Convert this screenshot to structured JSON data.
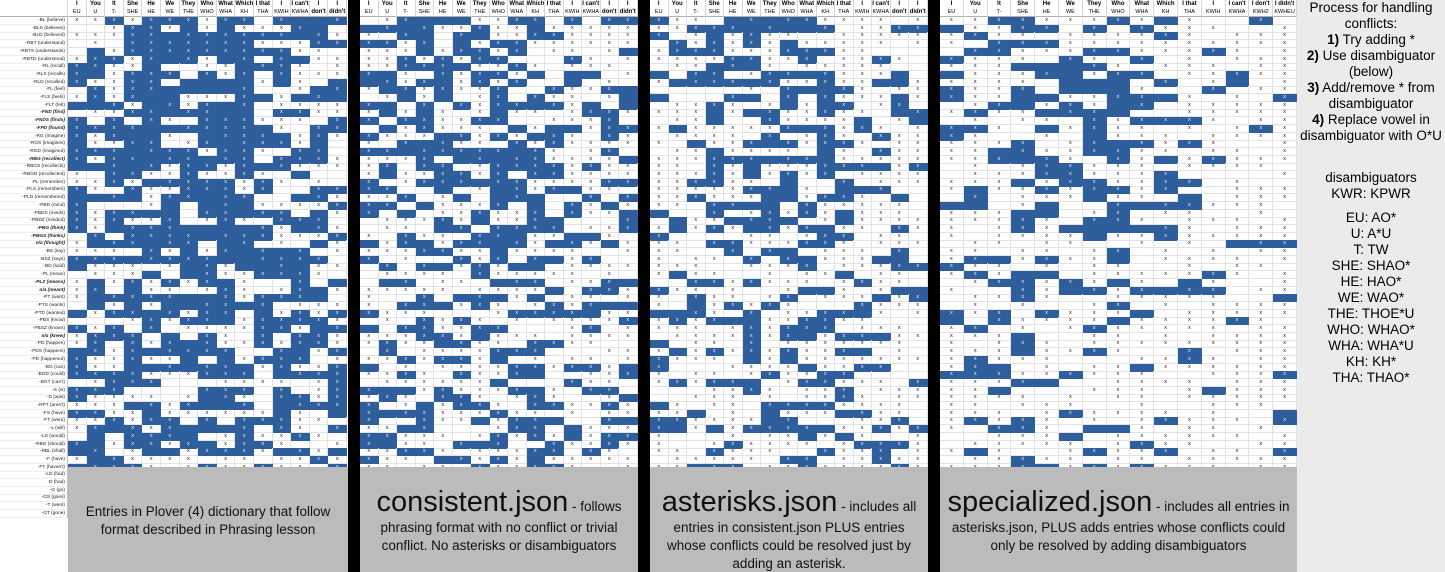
{
  "colors": {
    "highlight": "#2e5f9c",
    "caption_bg": "#bbbbbb",
    "sidebar_bg": "#ebebeb",
    "gutter": "#000000"
  },
  "columns": [
    {
      "top": "I",
      "bottom": "EU"
    },
    {
      "top": "You",
      "bottom": "U"
    },
    {
      "top": "It",
      "bottom": "T-"
    },
    {
      "top": "She",
      "bottom": "SHE"
    },
    {
      "top": "He",
      "bottom": "HE"
    },
    {
      "top": "We",
      "bottom": "WE"
    },
    {
      "top": "They",
      "bottom": "THE"
    },
    {
      "top": "Who",
      "bottom": "WHO"
    },
    {
      "top": "What",
      "bottom": "WHA"
    },
    {
      "top": "Which",
      "bottom": "KH"
    },
    {
      "top": "I that",
      "bottom": "THA"
    },
    {
      "top": "I",
      "bottom": "KWIH"
    },
    {
      "top": "I can't",
      "bottom": "KWHA"
    },
    {
      "top": "I don't",
      "bottom": "KWH2"
    },
    {
      "top": "I didn't",
      "bottom": "KWHEU"
    }
  ],
  "row_labels": [
    "-BL (believe)",
    "-BLS (believes)",
    "-BLD (believed)",
    "-RBT (understand)",
    "-RBTS (understands)",
    "-RBTD (understood)",
    "-RL (recall)",
    "-RLS (recalls)",
    "-RLD (recalled)",
    "-FL (feel)",
    "-FLS (feels)",
    "-FLT (felt)",
    "-FND (find)",
    "-FNDS (finds)",
    "-FPD (found)",
    "-RG (imagine)",
    "-RGS (imagines)",
    "-RGD (imagined)",
    "-RBG (recollect)",
    "-RBGS (recollects)",
    "-RBGD (recollected)",
    "-PL (remember)",
    "-PLS (remembers)",
    "-PLD (remembered)",
    "-PBD (mind)",
    "-PBDS (minds)",
    "-PBDZ (minded)",
    "-PBG (think)",
    "-PBGS (thinks)",
    "n/a (thought)",
    "-BS (say)",
    "-BSZ (says)",
    "-BD (said)",
    "-PL (mean)",
    "-PLZ (means)",
    "n/a (meant)",
    "-PT (want)",
    "-PTS (wants)",
    "-PTD (wanted)",
    "-PBS (know)",
    "-PBSZ (knows)",
    "n/a (knew)",
    "-PD (happen)",
    "-PDS (happens)",
    "-PD (happened)",
    "-BG (can)",
    "-BGD (could)",
    "-BGT (can't)",
    "-S (is)",
    "-D (was)",
    "-RPT (aren't)",
    "-FS (have)",
    "-FT (were)",
    "-L (will)",
    "-LD (would)",
    "-RBD (should)",
    "-RBL (shall)",
    "-F (have)",
    "-FT (haven't)",
    "-LD (had)",
    "-D (had)",
    "-G (go)",
    "-GS (goes)",
    "-T (went)",
    "-GT (gone)"
  ],
  "captions": [
    {
      "lead": "",
      "body": "Entries in Plover (4) dictionary that follow format described in Phrasing lesson"
    },
    {
      "lead": "consistent.json",
      "body": " - follows phrasing format with no conflict or trivial conflict. No asterisks or disambiguators"
    },
    {
      "lead": "asterisks.json",
      "body": " - includes all entries in consistent.json PLUS entries whose conflicts could be resolved just by adding an asterisk."
    },
    {
      "lead": "specialized.json",
      "body": " - includes all entries in asterisks.json, PLUS adds entries whose conflicts could only be resolved by adding disambiguators"
    }
  ],
  "sidebar": {
    "title": "Process for handling conflicts:",
    "steps": [
      {
        "num": "1)",
        "text": " Try adding *"
      },
      {
        "num": "2)",
        "text": " Use disambiguator (below)"
      },
      {
        "num": "3)",
        "text": " Add/remove * from disambiguator"
      },
      {
        "num": "4)",
        "text": " Replace vowel in disambiguator with O*U"
      }
    ],
    "disamb_title": "disambiguators",
    "disamb_sub": "KWR: KPWR",
    "mappings": [
      "EU: AO*",
      "U: A*U",
      "T: TW",
      "SHE: SHAO*",
      "HE: HAO*",
      "WE: WAO*",
      "THE: THOE*U",
      "WHO: WHAO*",
      "WHA: WHA*U",
      "KH: KH*",
      "THA: THAO*"
    ]
  }
}
